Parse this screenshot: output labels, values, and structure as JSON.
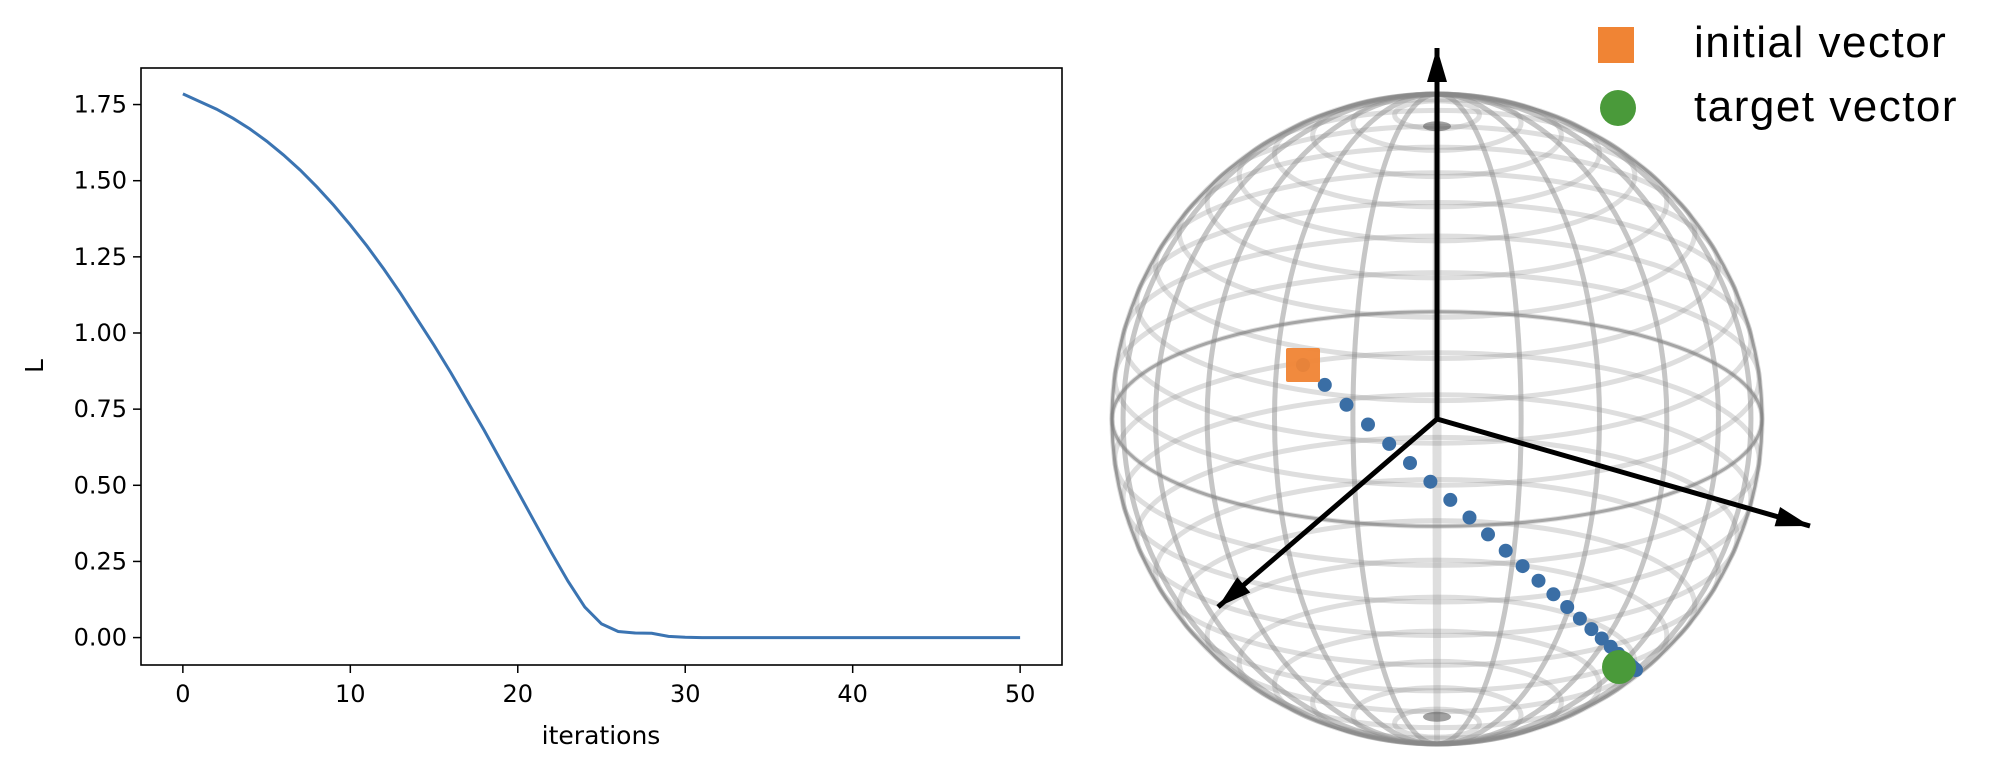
{
  "chart_data": [
    {
      "type": "line",
      "title": "",
      "xlabel": "iterations",
      "ylabel": "L",
      "xlim": [
        -2.5,
        52.5
      ],
      "ylim": [
        -0.09,
        1.87
      ],
      "xticks": [
        0,
        10,
        20,
        30,
        40,
        50
      ],
      "xtick_labels": [
        "0",
        "10",
        "20",
        "30",
        "40",
        "50"
      ],
      "yticks": [
        0.0,
        0.25,
        0.5,
        0.75,
        1.0,
        1.25,
        1.5,
        1.75
      ],
      "ytick_labels": [
        "0.00",
        "0.25",
        "0.50",
        "0.75",
        "1.00",
        "1.25",
        "1.50",
        "1.75"
      ],
      "grid": false,
      "color": "#3b74b2",
      "series": [
        {
          "x": [
            0,
            1,
            2,
            3,
            4,
            5,
            6,
            7,
            8,
            9,
            10,
            11,
            12,
            13,
            14,
            15,
            16,
            17,
            18,
            19,
            20,
            21,
            22,
            23,
            24,
            25,
            26,
            27,
            28,
            29,
            30,
            31,
            32,
            33,
            34,
            35,
            36,
            37,
            38,
            39,
            40,
            41,
            42,
            43,
            44,
            45,
            46,
            47,
            48,
            49,
            50
          ],
          "values": [
            1.785,
            1.76,
            1.735,
            1.705,
            1.67,
            1.63,
            1.585,
            1.535,
            1.48,
            1.42,
            1.355,
            1.285,
            1.21,
            1.13,
            1.045,
            0.96,
            0.87,
            0.775,
            0.68,
            0.58,
            0.48,
            0.38,
            0.28,
            0.185,
            0.1,
            0.045,
            0.02,
            0.015,
            0.014,
            0.004,
            0.001,
            0.0,
            0.0,
            0.0,
            0.0,
            0.0,
            0.0,
            0.0,
            0.0,
            0.0,
            0.0,
            0.0,
            0.0,
            0.0,
            0.0,
            0.0,
            0.0,
            0.0,
            0.0,
            0.0,
            0.0
          ]
        }
      ]
    },
    {
      "type": "scatter",
      "subtype": "bloch-sphere",
      "legend_position": "top-right",
      "legend": [
        {
          "label": "initial vector",
          "marker": "square",
          "color": "#f08434"
        },
        {
          "label": "target vector",
          "marker": "circle",
          "color": "#4a9a3a"
        }
      ],
      "trajectory_color": "#3a6ea5",
      "wireframe_color": "#888888",
      "axes_color": "#000000",
      "initial_vector": [
        -0.5,
        -0.3,
        0.1
      ],
      "target_vector": [
        0.55,
        0.75,
        -0.35
      ],
      "trajectory_point_count": 25
    }
  ]
}
